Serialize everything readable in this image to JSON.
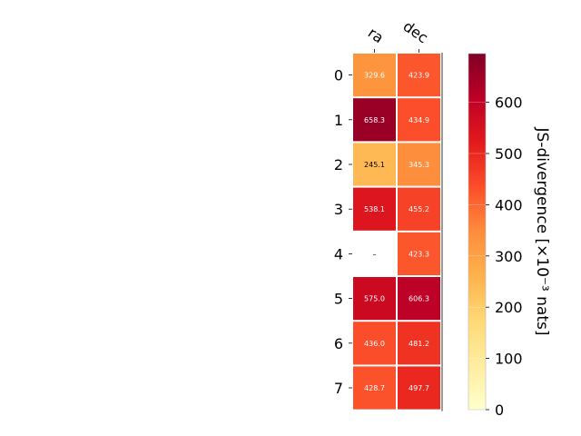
{
  "chart_data": {
    "type": "heatmap",
    "title": "",
    "columns": [
      "ra",
      "dec"
    ],
    "rows": [
      "0",
      "1",
      "2",
      "3",
      "4",
      "5",
      "6",
      "7"
    ],
    "values": [
      [
        329.6,
        423.9
      ],
      [
        658.3,
        434.9
      ],
      [
        245.1,
        345.3
      ],
      [
        538.1,
        455.2
      ],
      [
        null,
        423.3
      ],
      [
        575.0,
        606.3
      ],
      [
        436.0,
        481.2
      ],
      [
        428.7,
        497.7
      ]
    ],
    "cell_labels": [
      [
        "329.6",
        "423.9"
      ],
      [
        "658.3",
        "434.9"
      ],
      [
        "245.1",
        "345.3"
      ],
      [
        "538.1",
        "455.2"
      ],
      [
        "–",
        "423.3"
      ],
      [
        "575.0",
        "606.3"
      ],
      [
        "436.0",
        "481.2"
      ],
      [
        "428.7",
        "497.7"
      ]
    ],
    "colorbar": {
      "label": "JS-divergence [×10⁻³ nats]",
      "min": 0,
      "max": 695,
      "ticks": [
        "0",
        "100",
        "200",
        "300",
        "400",
        "500",
        "600"
      ],
      "tick_values": [
        0,
        100,
        200,
        300,
        400,
        500,
        600
      ],
      "colormap": "YlOrRd"
    }
  }
}
